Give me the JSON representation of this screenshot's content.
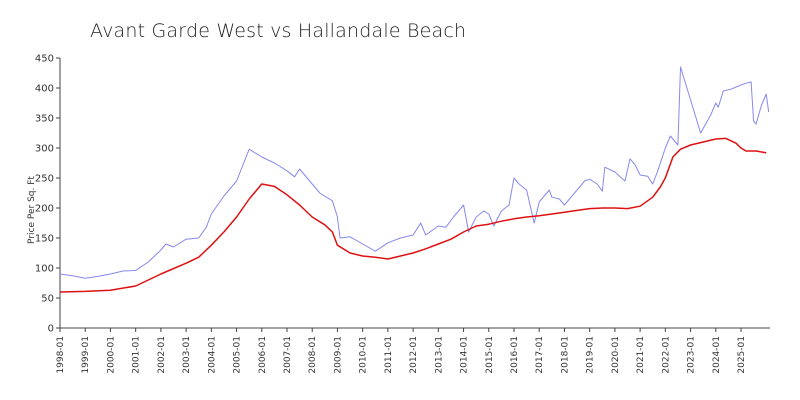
{
  "chart_data": {
    "type": "line",
    "title": "Avant Garde West vs Hallandale Beach",
    "xlabel": "",
    "ylabel": "Price Per Sq. Ft",
    "ylim": [
      0,
      450
    ],
    "yticks": [
      0,
      50,
      100,
      150,
      200,
      250,
      300,
      350,
      400,
      450
    ],
    "xticks": [
      "1998-01",
      "1999-01",
      "2000-01",
      "2001-01",
      "2002-01",
      "2003-01",
      "2004-01",
      "2005-01",
      "2006-01",
      "2007-01",
      "2008-01",
      "2009-01",
      "2010-01",
      "2011-01",
      "2012-01",
      "2013-01",
      "2014-01",
      "2015-01",
      "2016-01",
      "2017-01",
      "2018-01",
      "2019-01",
      "2020-01",
      "2021-01",
      "2022-01",
      "2023-01",
      "2024-01",
      "2025-01"
    ],
    "grid": false,
    "legend": "none",
    "series": [
      {
        "color": "#8888ee",
        "points": [
          [
            1998.0,
            90
          ],
          [
            1998.5,
            87
          ],
          [
            1999.0,
            83
          ],
          [
            1999.5,
            86
          ],
          [
            2000.0,
            90
          ],
          [
            2000.5,
            95
          ],
          [
            2001.0,
            96
          ],
          [
            2001.5,
            110
          ],
          [
            2002.0,
            130
          ],
          [
            2002.2,
            140
          ],
          [
            2002.5,
            135
          ],
          [
            2003.0,
            148
          ],
          [
            2003.5,
            150
          ],
          [
            2003.8,
            168
          ],
          [
            2004.0,
            190
          ],
          [
            2004.5,
            220
          ],
          [
            2005.0,
            245
          ],
          [
            2005.5,
            298
          ],
          [
            2006.0,
            285
          ],
          [
            2006.5,
            275
          ],
          [
            2007.0,
            262
          ],
          [
            2007.3,
            252
          ],
          [
            2007.5,
            265
          ],
          [
            2008.0,
            240
          ],
          [
            2008.3,
            225
          ],
          [
            2008.8,
            212
          ],
          [
            2009.0,
            185
          ],
          [
            2009.1,
            150
          ],
          [
            2009.5,
            152
          ],
          [
            2010.0,
            140
          ],
          [
            2010.5,
            128
          ],
          [
            2011.0,
            142
          ],
          [
            2011.5,
            150
          ],
          [
            2012.0,
            155
          ],
          [
            2012.3,
            175
          ],
          [
            2012.5,
            155
          ],
          [
            2013.0,
            170
          ],
          [
            2013.3,
            168
          ],
          [
            2013.6,
            185
          ],
          [
            2014.0,
            205
          ],
          [
            2014.2,
            160
          ],
          [
            2014.5,
            185
          ],
          [
            2014.8,
            195
          ],
          [
            2015.0,
            190
          ],
          [
            2015.2,
            170
          ],
          [
            2015.5,
            195
          ],
          [
            2015.8,
            205
          ],
          [
            2016.0,
            250
          ],
          [
            2016.2,
            240
          ],
          [
            2016.5,
            230
          ],
          [
            2016.8,
            175
          ],
          [
            2017.0,
            210
          ],
          [
            2017.4,
            230
          ],
          [
            2017.5,
            218
          ],
          [
            2017.8,
            215
          ],
          [
            2018.0,
            205
          ],
          [
            2018.5,
            230
          ],
          [
            2018.8,
            245
          ],
          [
            2019.0,
            248
          ],
          [
            2019.3,
            240
          ],
          [
            2019.5,
            228
          ],
          [
            2019.6,
            268
          ],
          [
            2020.0,
            260
          ],
          [
            2020.4,
            245
          ],
          [
            2020.6,
            282
          ],
          [
            2020.8,
            272
          ],
          [
            2021.0,
            255
          ],
          [
            2021.3,
            253
          ],
          [
            2021.5,
            240
          ],
          [
            2021.7,
            262
          ],
          [
            2022.0,
            300
          ],
          [
            2022.2,
            320
          ],
          [
            2022.4,
            310
          ],
          [
            2022.5,
            305
          ],
          [
            2022.6,
            435
          ],
          [
            2023.0,
            380
          ],
          [
            2023.4,
            325
          ],
          [
            2023.8,
            355
          ],
          [
            2024.0,
            375
          ],
          [
            2024.1,
            368
          ],
          [
            2024.3,
            395
          ],
          [
            2024.6,
            398
          ],
          [
            2025.0,
            405
          ],
          [
            2025.2,
            408
          ],
          [
            2025.4,
            410
          ],
          [
            2025.5,
            345
          ],
          [
            2025.6,
            340
          ],
          [
            2025.8,
            370
          ],
          [
            2026.0,
            390
          ],
          [
            2026.1,
            360
          ]
        ]
      },
      {
        "color": "#dd1111",
        "points": [
          [
            1998.0,
            60
          ],
          [
            1999.0,
            61
          ],
          [
            2000.0,
            63
          ],
          [
            2001.0,
            70
          ],
          [
            2002.0,
            90
          ],
          [
            2003.0,
            108
          ],
          [
            2003.5,
            118
          ],
          [
            2004.0,
            138
          ],
          [
            2004.5,
            160
          ],
          [
            2005.0,
            185
          ],
          [
            2005.5,
            215
          ],
          [
            2006.0,
            240
          ],
          [
            2006.5,
            236
          ],
          [
            2007.0,
            222
          ],
          [
            2007.5,
            205
          ],
          [
            2008.0,
            185
          ],
          [
            2008.5,
            172
          ],
          [
            2008.8,
            160
          ],
          [
            2009.0,
            138
          ],
          [
            2009.5,
            125
          ],
          [
            2010.0,
            120
          ],
          [
            2010.5,
            118
          ],
          [
            2011.0,
            115
          ],
          [
            2011.5,
            120
          ],
          [
            2012.0,
            125
          ],
          [
            2012.5,
            132
          ],
          [
            2013.0,
            140
          ],
          [
            2013.5,
            148
          ],
          [
            2014.0,
            160
          ],
          [
            2014.5,
            170
          ],
          [
            2015.0,
            173
          ],
          [
            2015.5,
            178
          ],
          [
            2016.0,
            182
          ],
          [
            2016.5,
            185
          ],
          [
            2017.0,
            187
          ],
          [
            2017.5,
            190
          ],
          [
            2018.0,
            193
          ],
          [
            2018.5,
            196
          ],
          [
            2019.0,
            199
          ],
          [
            2019.5,
            200
          ],
          [
            2020.0,
            200
          ],
          [
            2020.5,
            199
          ],
          [
            2021.0,
            203
          ],
          [
            2021.5,
            218
          ],
          [
            2021.8,
            235
          ],
          [
            2022.0,
            250
          ],
          [
            2022.3,
            285
          ],
          [
            2022.6,
            298
          ],
          [
            2023.0,
            305
          ],
          [
            2023.5,
            310
          ],
          [
            2024.0,
            315
          ],
          [
            2024.4,
            316
          ],
          [
            2024.8,
            308
          ],
          [
            2025.0,
            300
          ],
          [
            2025.2,
            295
          ],
          [
            2025.6,
            295
          ],
          [
            2026.0,
            292
          ]
        ]
      }
    ]
  }
}
